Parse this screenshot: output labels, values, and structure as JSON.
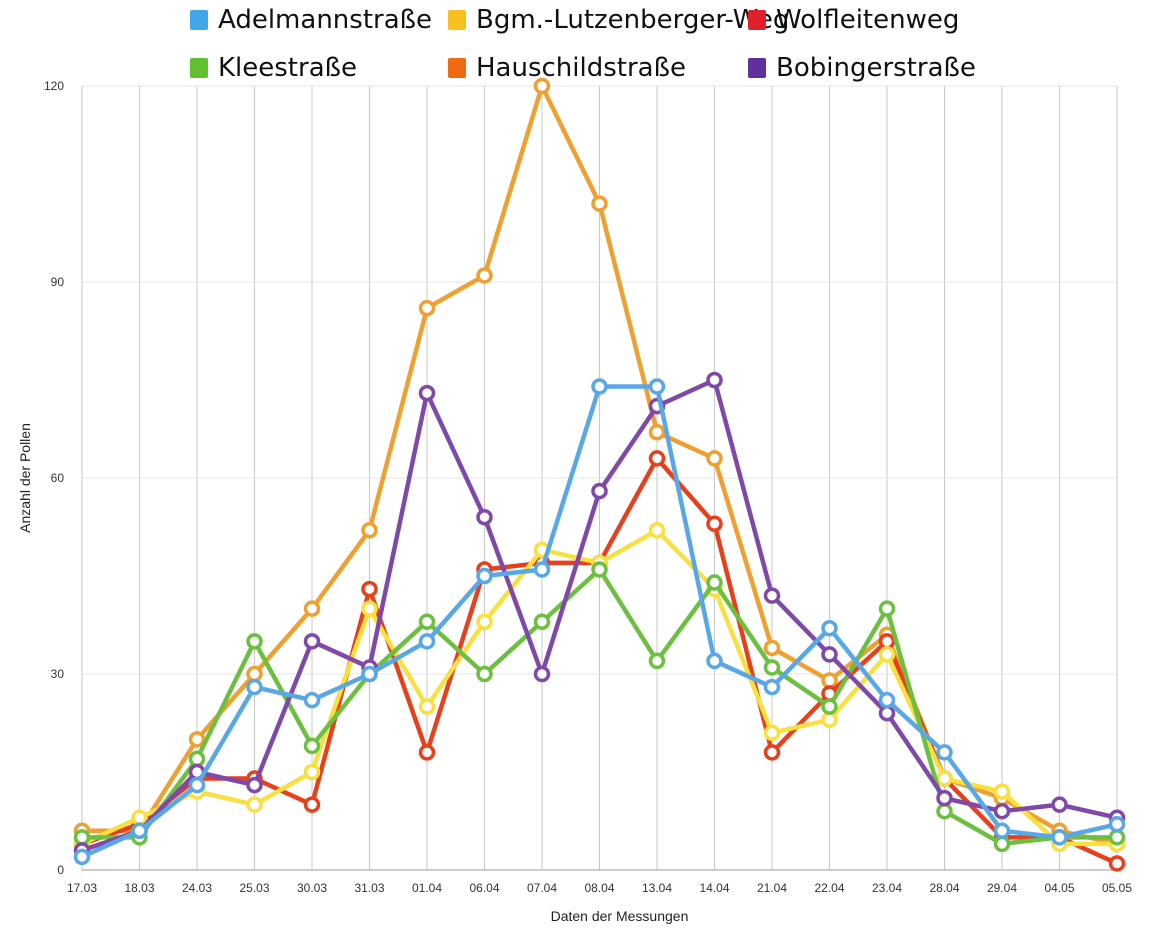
{
  "chart_data": {
    "type": "line",
    "title": "",
    "xlabel": "Daten der Messungen",
    "ylabel": "Anzahl der Pollen",
    "ylim": [
      0,
      120
    ],
    "y_ticks": [
      0,
      30,
      60,
      90,
      120
    ],
    "grid": true,
    "legend_position": "top",
    "categories": [
      "17.03",
      "18.03",
      "24.03",
      "25.03",
      "30.03",
      "31.03",
      "01.04",
      "06.04",
      "07.04",
      "08.04",
      "13.04",
      "14.04",
      "21.04",
      "22.04",
      "23.04",
      "28.04",
      "29.04",
      "04.05",
      "05.05"
    ],
    "series": [
      {
        "name": "Hauschildstraße",
        "color": "#f0a030",
        "legend_color": "#f06a10",
        "values": [
          6,
          6,
          20,
          30,
          40,
          52,
          86,
          91,
          120,
          102,
          67,
          63,
          34,
          29,
          36,
          14,
          11,
          6,
          4
        ]
      },
      {
        "name": "Wolfleitenweg",
        "color": "#e8401c",
        "legend_color": "#e0202a",
        "values": [
          4,
          7,
          14,
          14,
          10,
          43,
          18,
          46,
          47,
          47,
          63,
          53,
          18,
          27,
          35,
          14,
          5,
          5,
          1
        ]
      },
      {
        "name": "Bgm.-Lutzenberger-Weg",
        "color": "#f8e040",
        "legend_color": "#f8c020",
        "values": [
          4,
          8,
          12,
          10,
          15,
          40,
          25,
          38,
          49,
          47,
          52,
          43,
          21,
          23,
          33,
          14,
          12,
          4,
          4
        ]
      },
      {
        "name": "Kleestraße",
        "color": "#6cc040",
        "legend_color": "#60c030",
        "values": [
          5,
          5,
          17,
          35,
          19,
          30,
          38,
          30,
          38,
          46,
          32,
          44,
          31,
          25,
          40,
          9,
          4,
          5,
          5
        ]
      },
      {
        "name": "Bobingerstraße",
        "color": "#8048a8",
        "legend_color": "#6030a0",
        "values": [
          3,
          6,
          15,
          13,
          35,
          31,
          73,
          54,
          30,
          58,
          71,
          75,
          42,
          33,
          24,
          11,
          9,
          10,
          8
        ]
      },
      {
        "name": "Adelmannstraße",
        "color": "#58a8e8",
        "legend_color": "#40a8e8",
        "values": [
          2,
          6,
          13,
          28,
          26,
          30,
          35,
          45,
          46,
          74,
          74,
          32,
          28,
          37,
          26,
          18,
          6,
          5,
          7
        ]
      }
    ],
    "legend_items": [
      {
        "name": "Adelmannstraße",
        "color": "#40a8e8"
      },
      {
        "name": "Bgm.-Lutzenberger-Weg",
        "color": "#f8c020"
      },
      {
        "name": "Wolfleitenweg",
        "color": "#e0202a"
      },
      {
        "name": "Kleestraße",
        "color": "#60c030"
      },
      {
        "name": "Hauschildstraße",
        "color": "#f06a10"
      },
      {
        "name": "Bobingerstraße",
        "color": "#6030a0"
      }
    ]
  }
}
